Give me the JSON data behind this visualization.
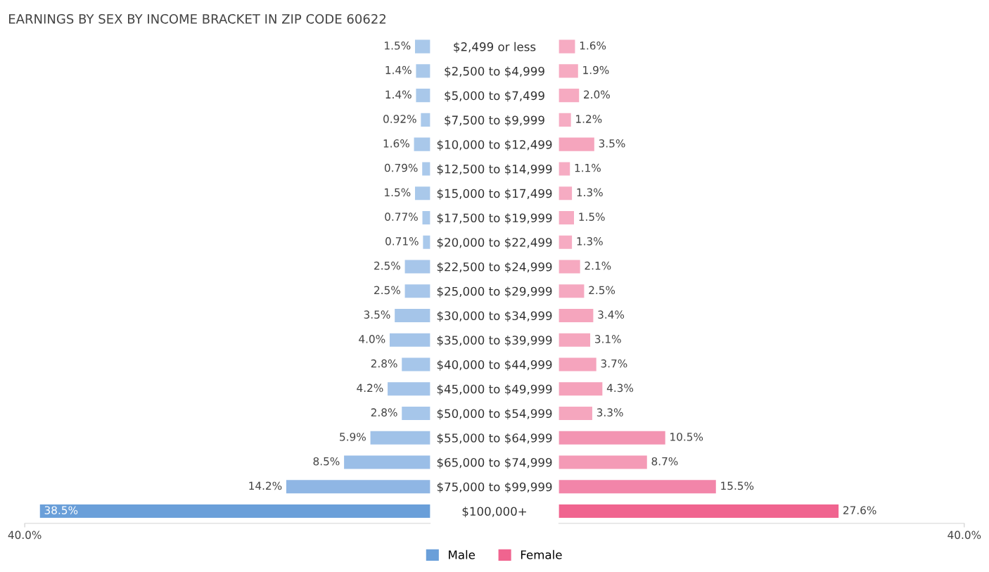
{
  "chart_data": [
    {
      "type": "bar",
      "orientation": "horizontal",
      "title": "EARNINGS BY SEX BY INCOME BRACKET IN ZIP CODE 60622",
      "categories": [
        "$2,499 or less",
        "$2,500 to $4,999",
        "$5,000 to $7,499",
        "$7,500 to $9,999",
        "$10,000 to $12,499",
        "$12,500 to $14,999",
        "$15,000 to $17,499",
        "$17,500 to $19,999",
        "$20,000 to $22,499",
        "$22,500 to $24,999",
        "$25,000 to $29,999",
        "$30,000 to $34,999",
        "$35,000 to $39,999",
        "$40,000 to $44,999",
        "$45,000 to $49,999",
        "$50,000 to $54,999",
        "$55,000 to $64,999",
        "$65,000 to $74,999",
        "$75,000 to $99,999",
        "$100,000+"
      ],
      "series": [
        {
          "name": "Male",
          "color": "#6a9fd9",
          "values": [
            1.5,
            1.4,
            1.4,
            0.92,
            1.6,
            0.79,
            1.5,
            0.77,
            0.71,
            2.5,
            2.5,
            3.5,
            4.0,
            2.8,
            4.2,
            2.8,
            5.9,
            8.5,
            14.2,
            38.5
          ],
          "value_labels": [
            "1.5%",
            "1.4%",
            "1.4%",
            "0.92%",
            "1.6%",
            "0.79%",
            "1.5%",
            "0.77%",
            "0.71%",
            "2.5%",
            "2.5%",
            "3.5%",
            "4.0%",
            "2.8%",
            "4.2%",
            "2.8%",
            "5.9%",
            "8.5%",
            "14.2%",
            "38.5%"
          ],
          "colors": [
            "#a9c8ea",
            "#a9c8ea",
            "#a9c8ea",
            "#aac9eb",
            "#a9c8ea",
            "#aac9eb",
            "#a9c8ea",
            "#aac9eb",
            "#aac9eb",
            "#a7c6ea",
            "#a7c6ea",
            "#a5c5e9",
            "#a4c4e9",
            "#a6c6ea",
            "#a4c4e9",
            "#a6c6ea",
            "#a0c2e8",
            "#9abee7",
            "#8fb6e4",
            "#6a9fd9"
          ]
        }
      ],
      "xlim": [
        40,
        0
      ],
      "xticks": [
        {
          "value": 40,
          "label": "40.0%"
        }
      ],
      "grid": false
    },
    {
      "type": "bar",
      "orientation": "horizontal",
      "series": [
        {
          "name": "Female",
          "color": "#f0648f",
          "values": [
            1.6,
            1.9,
            2.0,
            1.2,
            3.5,
            1.1,
            1.3,
            1.5,
            1.3,
            2.1,
            2.5,
            3.4,
            3.1,
            3.7,
            4.3,
            3.3,
            10.5,
            8.7,
            15.5,
            27.6
          ],
          "value_labels": [
            "1.6%",
            "1.9%",
            "2.0%",
            "1.2%",
            "3.5%",
            "1.1%",
            "1.3%",
            "1.5%",
            "1.3%",
            "2.1%",
            "2.5%",
            "3.4%",
            "3.1%",
            "3.7%",
            "4.3%",
            "3.3%",
            "10.5%",
            "8.7%",
            "15.5%",
            "27.6%"
          ],
          "colors": [
            "#f6abc2",
            "#f6aac1",
            "#f6aac1",
            "#f6acc3",
            "#f5a5bd",
            "#f6acc3",
            "#f6abc2",
            "#f6abc2",
            "#f6abc2",
            "#f6a9c0",
            "#f5a8c0",
            "#f5a5bd",
            "#f5a6be",
            "#f5a4bd",
            "#f5a2bb",
            "#f5a6be",
            "#f394b2",
            "#f49ab6",
            "#f285a9",
            "#f0648f"
          ]
        }
      ],
      "xlim": [
        0,
        40
      ],
      "xticks": [
        {
          "value": 40,
          "label": "40.0%"
        }
      ],
      "grid": false,
      "legend": "bottom"
    }
  ]
}
